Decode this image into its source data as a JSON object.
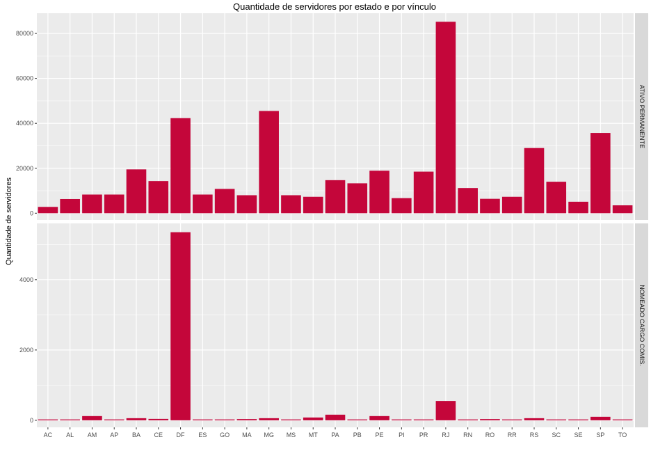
{
  "chart_data": {
    "type": "bar",
    "title": "Quantidade de servidores por estado e por vínculo",
    "xlabel": "",
    "ylabel": "Quantidade de servidores",
    "bar_color": "#C4063A",
    "panel_background": "#EBEBEB",
    "strip_background": "#D9D9D9",
    "grid": true,
    "facet_direction": "rows",
    "categories": [
      "AC",
      "AL",
      "AM",
      "AP",
      "BA",
      "CE",
      "DF",
      "ES",
      "GO",
      "MA",
      "MG",
      "MS",
      "MT",
      "PA",
      "PB",
      "PE",
      "PI",
      "PR",
      "RJ",
      "RN",
      "RO",
      "RR",
      "RS",
      "SC",
      "SE",
      "SP",
      "TO"
    ],
    "panels": [
      {
        "facet": "ATIVO PERMANENTE",
        "ylim": [
          -3000,
          89000
        ],
        "yticks": [
          0,
          20000,
          40000,
          60000,
          80000
        ],
        "ytick_labels": [
          "0",
          "20000",
          "40000",
          "60000",
          "80000"
        ],
        "values": [
          2800,
          6300,
          8300,
          8300,
          19500,
          14300,
          42300,
          8300,
          10800,
          8000,
          45500,
          8000,
          7300,
          14700,
          13300,
          18900,
          6700,
          18500,
          85200,
          11200,
          6400,
          7300,
          29000,
          14000,
          5100,
          35700,
          3500
        ]
      },
      {
        "facet": "NOMEADO CARGO COMIS.",
        "ylim": [
          -200,
          5600
        ],
        "yticks": [
          0,
          2000,
          4000
        ],
        "ytick_labels": [
          "0",
          "2000",
          "4000"
        ],
        "values": [
          25,
          25,
          120,
          25,
          60,
          40,
          5350,
          25,
          25,
          35,
          60,
          25,
          80,
          160,
          25,
          120,
          25,
          25,
          550,
          25,
          35,
          25,
          60,
          25,
          25,
          100,
          25
        ]
      }
    ]
  }
}
